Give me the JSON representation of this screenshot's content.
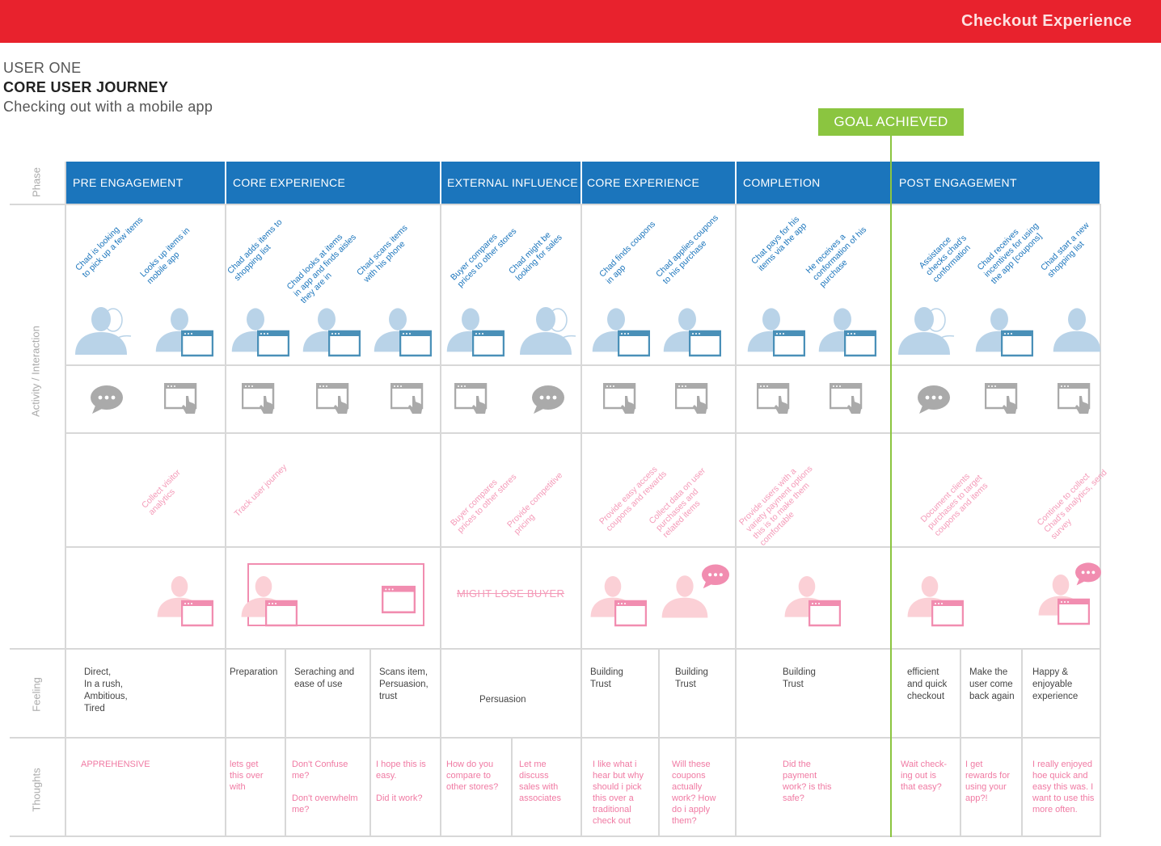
{
  "header": {
    "banner_title": "Checkout Experience",
    "user_label": "USER ONE",
    "journey_title": "CORE USER JOURNEY",
    "journey_subtitle": "Checking out with a mobile app",
    "goal_label": "GOAL ACHIEVED"
  },
  "colors": {
    "banner": "#e8222d",
    "phase": "#1b75bc",
    "goal": "#8bc540",
    "activity_text": "#1b75bc",
    "opportunity_text": "#f49ab8",
    "thought_text": "#f07aa3"
  },
  "row_labels": {
    "phase": "Phase",
    "activity": "Activity / Interaction",
    "feeling": "Feeling",
    "thoughts": "Thoughts"
  },
  "phases": [
    "PRE ENGAGEMENT",
    "CORE EXPERIENCE",
    "EXTERNAL INFLUENCE",
    "CORE EXPERIENCE",
    "COMPLETION",
    "POST ENGAGEMENT"
  ],
  "activities": [
    "Chad is looking\nto pick up a few items",
    "Looks up items in\nmobile app",
    "Chad adds items to\nshopping list",
    "Chad looks at items\nin app and finds aisles\nthey are in",
    "Chad scans items\nwith his phone",
    "Buyer compares\nprices to other stores",
    "Chad might be\nlooking for sales",
    "Chad finds coupons\nin app",
    "Chad applies coupons\nto his purchase",
    "Chat pays for his\nitems via the app",
    "He receives a\nconformation of his\npurchase",
    "Assistance\nchecks chad's\nconformation",
    "Chad receives\nincentives for using\nthe app [coupons]",
    "Chad start a new\nshopping list"
  ],
  "opportunities": [
    "Collect visitor\nanalytics",
    "Track user journey",
    "Buyer compares\nprices to other stores",
    "Provide competitive\npricing",
    "Provide easy access\ncoupons and rewards",
    "Collect data on user\npurchases and\nrelated items",
    "Provide users with a\nvariety payment options\nthis is to make them\ncomfortable",
    "Document clients\npurchases to target\ncoupons and items",
    "Continue to collect\nChad's analytics, send\nsurvey"
  ],
  "pain_point": "MIGHT LOSE BUYER",
  "feelings": [
    "Direct,\nIn a rush,\nAmbitious,\nTired",
    "Preparation",
    "Seraching and\nease of use",
    "Scans item,\nPersuasion,\ntrust",
    "Persuasion",
    "Building\nTrust",
    "Building\nTrust",
    "Building\nTrust",
    "efficient\nand quick\ncheckout",
    "Make the\nuser come\nback again",
    "Happy &\nenjoyable\nexperience"
  ],
  "thoughts": [
    "APPREHENSIVE",
    "lets get\nthis over\nwith",
    "Don't Confuse\nme?\n\nDon't overwhelm\nme?",
    "I hope this is\neasy.\n\nDid it work?",
    "How do you\ncompare to\nother stores?",
    "Let me\ndiscuss\nsales with\nassociates",
    "I like what i\nhear but why\nshould i pick\nthis over a\ntraditional\ncheck out",
    "Will these\ncoupons\nactually\nwork? How\ndo i apply\nthem?",
    "Did the\npayment\nwork? is this\nsafe?",
    "Wait check-\ning out is\nthat easy?",
    "I get\nrewards for\nusing your\napp?!",
    "I really enjoyed\nhoe quick and\neasy this was. I\nwant to use this\nmore often."
  ]
}
